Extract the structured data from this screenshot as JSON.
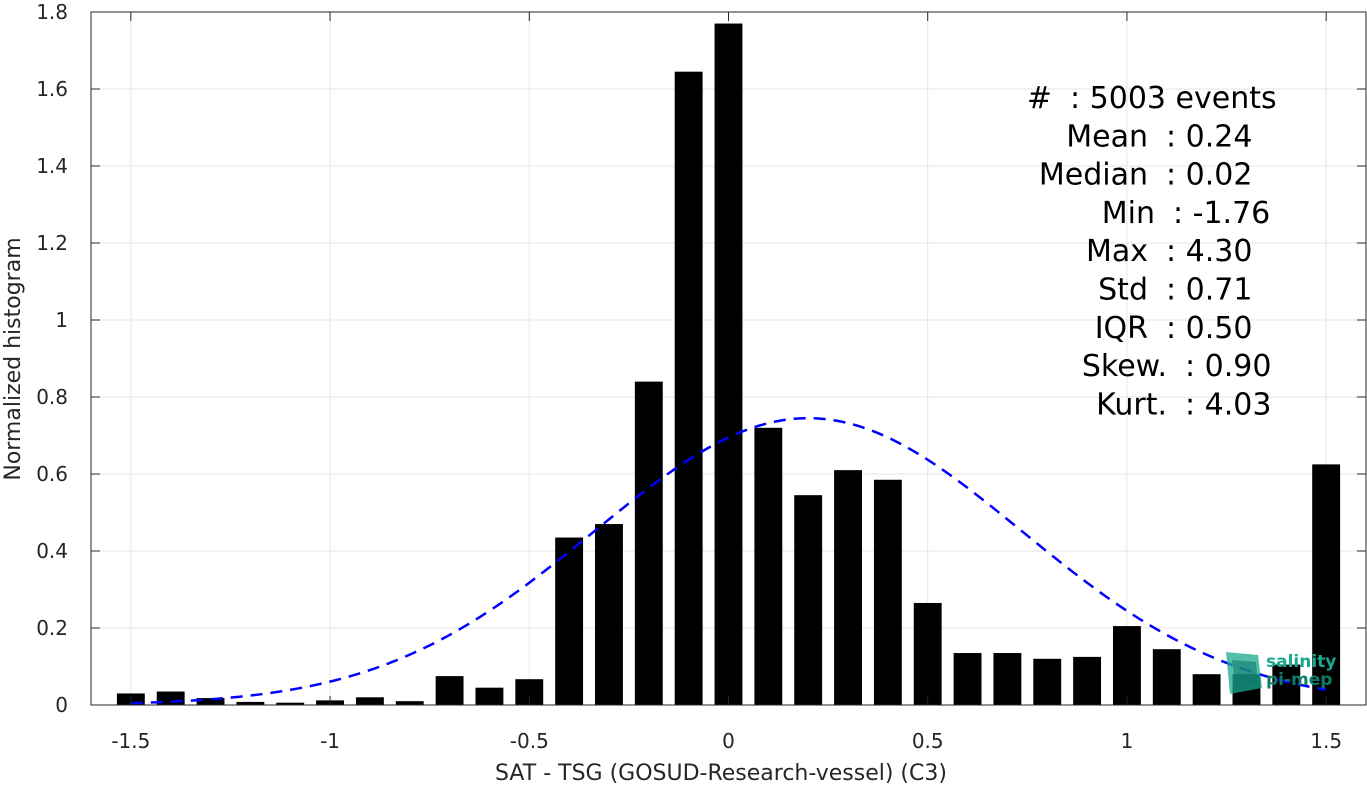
{
  "chart_data": {
    "type": "bar",
    "xlabel": "SAT - TSG (GOSUD-Research-vessel) (C3)",
    "ylabel": "Normalized histogram",
    "xlim": [
      -1.6,
      1.6
    ],
    "ylim": [
      0,
      1.8
    ],
    "xticks": [
      -1.5,
      -1,
      -0.5,
      0,
      0.5,
      1,
      1.5
    ],
    "xtick_labels": [
      "-1.5",
      "-1",
      "-0.5",
      "0",
      "0.5",
      "1",
      "1.5"
    ],
    "yticks": [
      0,
      0.2,
      0.4,
      0.6,
      0.8,
      1,
      1.2,
      1.4,
      1.6,
      1.8
    ],
    "ytick_labels": [
      "0",
      "0.2",
      "0.4",
      "0.6",
      "0.8",
      "1",
      "1.2",
      "1.4",
      "1.6",
      "1.8"
    ],
    "grid": true,
    "bar_color": "#000000",
    "bars": {
      "x": [
        -1.5,
        -1.4,
        -1.3,
        -1.2,
        -1.1,
        -1.0,
        -0.9,
        -0.8,
        -0.7,
        -0.6,
        -0.5,
        -0.4,
        -0.3,
        -0.2,
        -0.1,
        0.0,
        0.1,
        0.2,
        0.3,
        0.4,
        0.5,
        0.6,
        0.7,
        0.8,
        0.9,
        1.0,
        1.1,
        1.2,
        1.3,
        1.4,
        1.5
      ],
      "values": [
        0.03,
        0.035,
        0.018,
        0.008,
        0.006,
        0.012,
        0.02,
        0.01,
        0.075,
        0.045,
        0.067,
        0.435,
        0.47,
        0.84,
        1.645,
        1.77,
        0.72,
        0.545,
        0.61,
        0.585,
        0.265,
        0.135,
        0.135,
        0.12,
        0.125,
        0.205,
        0.145,
        0.08,
        0.08,
        0.105,
        0.625
      ],
      "width": 0.07
    },
    "fit_curve": {
      "style": "dashed",
      "color": "#0000ff",
      "mean": 0.2,
      "std": 0.536,
      "peak": 0.745,
      "x_range": [
        -1.5,
        1.5
      ]
    },
    "annotations": [
      {
        "label": "#",
        "sep": ":",
        "value": "5003 events"
      },
      {
        "label": "Mean",
        "sep": ":",
        "value": "0.24"
      },
      {
        "label": "Median",
        "sep": ":",
        "value": "0.02"
      },
      {
        "label": "Min",
        "sep": ":",
        "value": "-1.76"
      },
      {
        "label": "Max",
        "sep": ":",
        "value": "4.30"
      },
      {
        "label": "Std",
        "sep": ":",
        "value": "0.71"
      },
      {
        "label": "IQR",
        "sep": ":",
        "value": "0.50"
      },
      {
        "label": "Skew.",
        "sep": ":",
        "value": "0.90"
      },
      {
        "label": "Kurt.",
        "sep": ":",
        "value": "4.03"
      }
    ]
  },
  "logo": {
    "line1": "salinity",
    "line2": "pi-mep",
    "color_primary": "#1aa98f",
    "color_secondary": "#0d7a6a"
  }
}
